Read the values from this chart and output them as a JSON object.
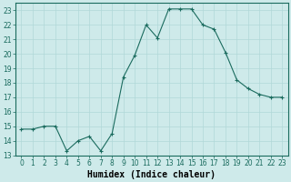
{
  "x": [
    0,
    1,
    2,
    3,
    4,
    5,
    6,
    7,
    8,
    9,
    10,
    11,
    12,
    13,
    14,
    15,
    16,
    17,
    18,
    19,
    20,
    21,
    22,
    23
  ],
  "y": [
    14.8,
    14.8,
    15.0,
    15.0,
    13.3,
    14.0,
    14.3,
    13.3,
    14.5,
    18.4,
    19.9,
    22.0,
    21.1,
    23.1,
    23.1,
    23.1,
    22.0,
    21.7,
    20.1,
    18.2,
    17.6,
    17.2,
    17.0,
    17.0
  ],
  "line_color": "#1a6b5e",
  "marker": "+",
  "marker_size": 3.5,
  "xlabel": "Humidex (Indice chaleur)",
  "ylim": [
    13,
    23.5
  ],
  "xlim": [
    -0.5,
    23.5
  ],
  "yticks": [
    13,
    14,
    15,
    16,
    17,
    18,
    19,
    20,
    21,
    22,
    23
  ],
  "xticks": [
    0,
    1,
    2,
    3,
    4,
    5,
    6,
    7,
    8,
    9,
    10,
    11,
    12,
    13,
    14,
    15,
    16,
    17,
    18,
    19,
    20,
    21,
    22,
    23
  ],
  "bg_color": "#ceeaea",
  "grid_color": "#b0d8d8",
  "tick_fontsize": 5.5,
  "xlabel_fontsize": 7.0,
  "fig_width": 3.2,
  "fig_height": 2.0,
  "dpi": 100
}
